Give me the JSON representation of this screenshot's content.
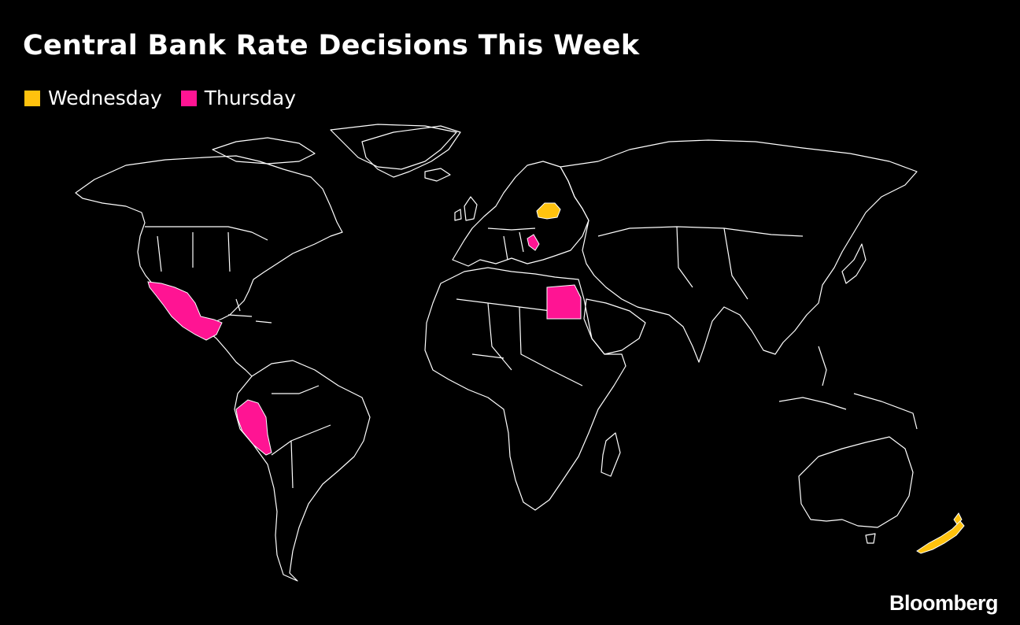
{
  "title": "Central Bank Rate Decisions This Week",
  "legend": [
    {
      "label": "Wednesday",
      "color": "#FFC20E"
    },
    {
      "label": "Thursday",
      "color": "#FF1493"
    }
  ],
  "highlighted_countries": {
    "wednesday": [
      "Belarus",
      "New Zealand"
    ],
    "thursday": [
      "Mexico",
      "Peru",
      "Egypt",
      "Serbia"
    ]
  },
  "brand": "Bloomberg",
  "colors": {
    "background": "#000000",
    "border": "#ffffff",
    "wednesday": "#FFC20E",
    "thursday": "#FF1493"
  }
}
